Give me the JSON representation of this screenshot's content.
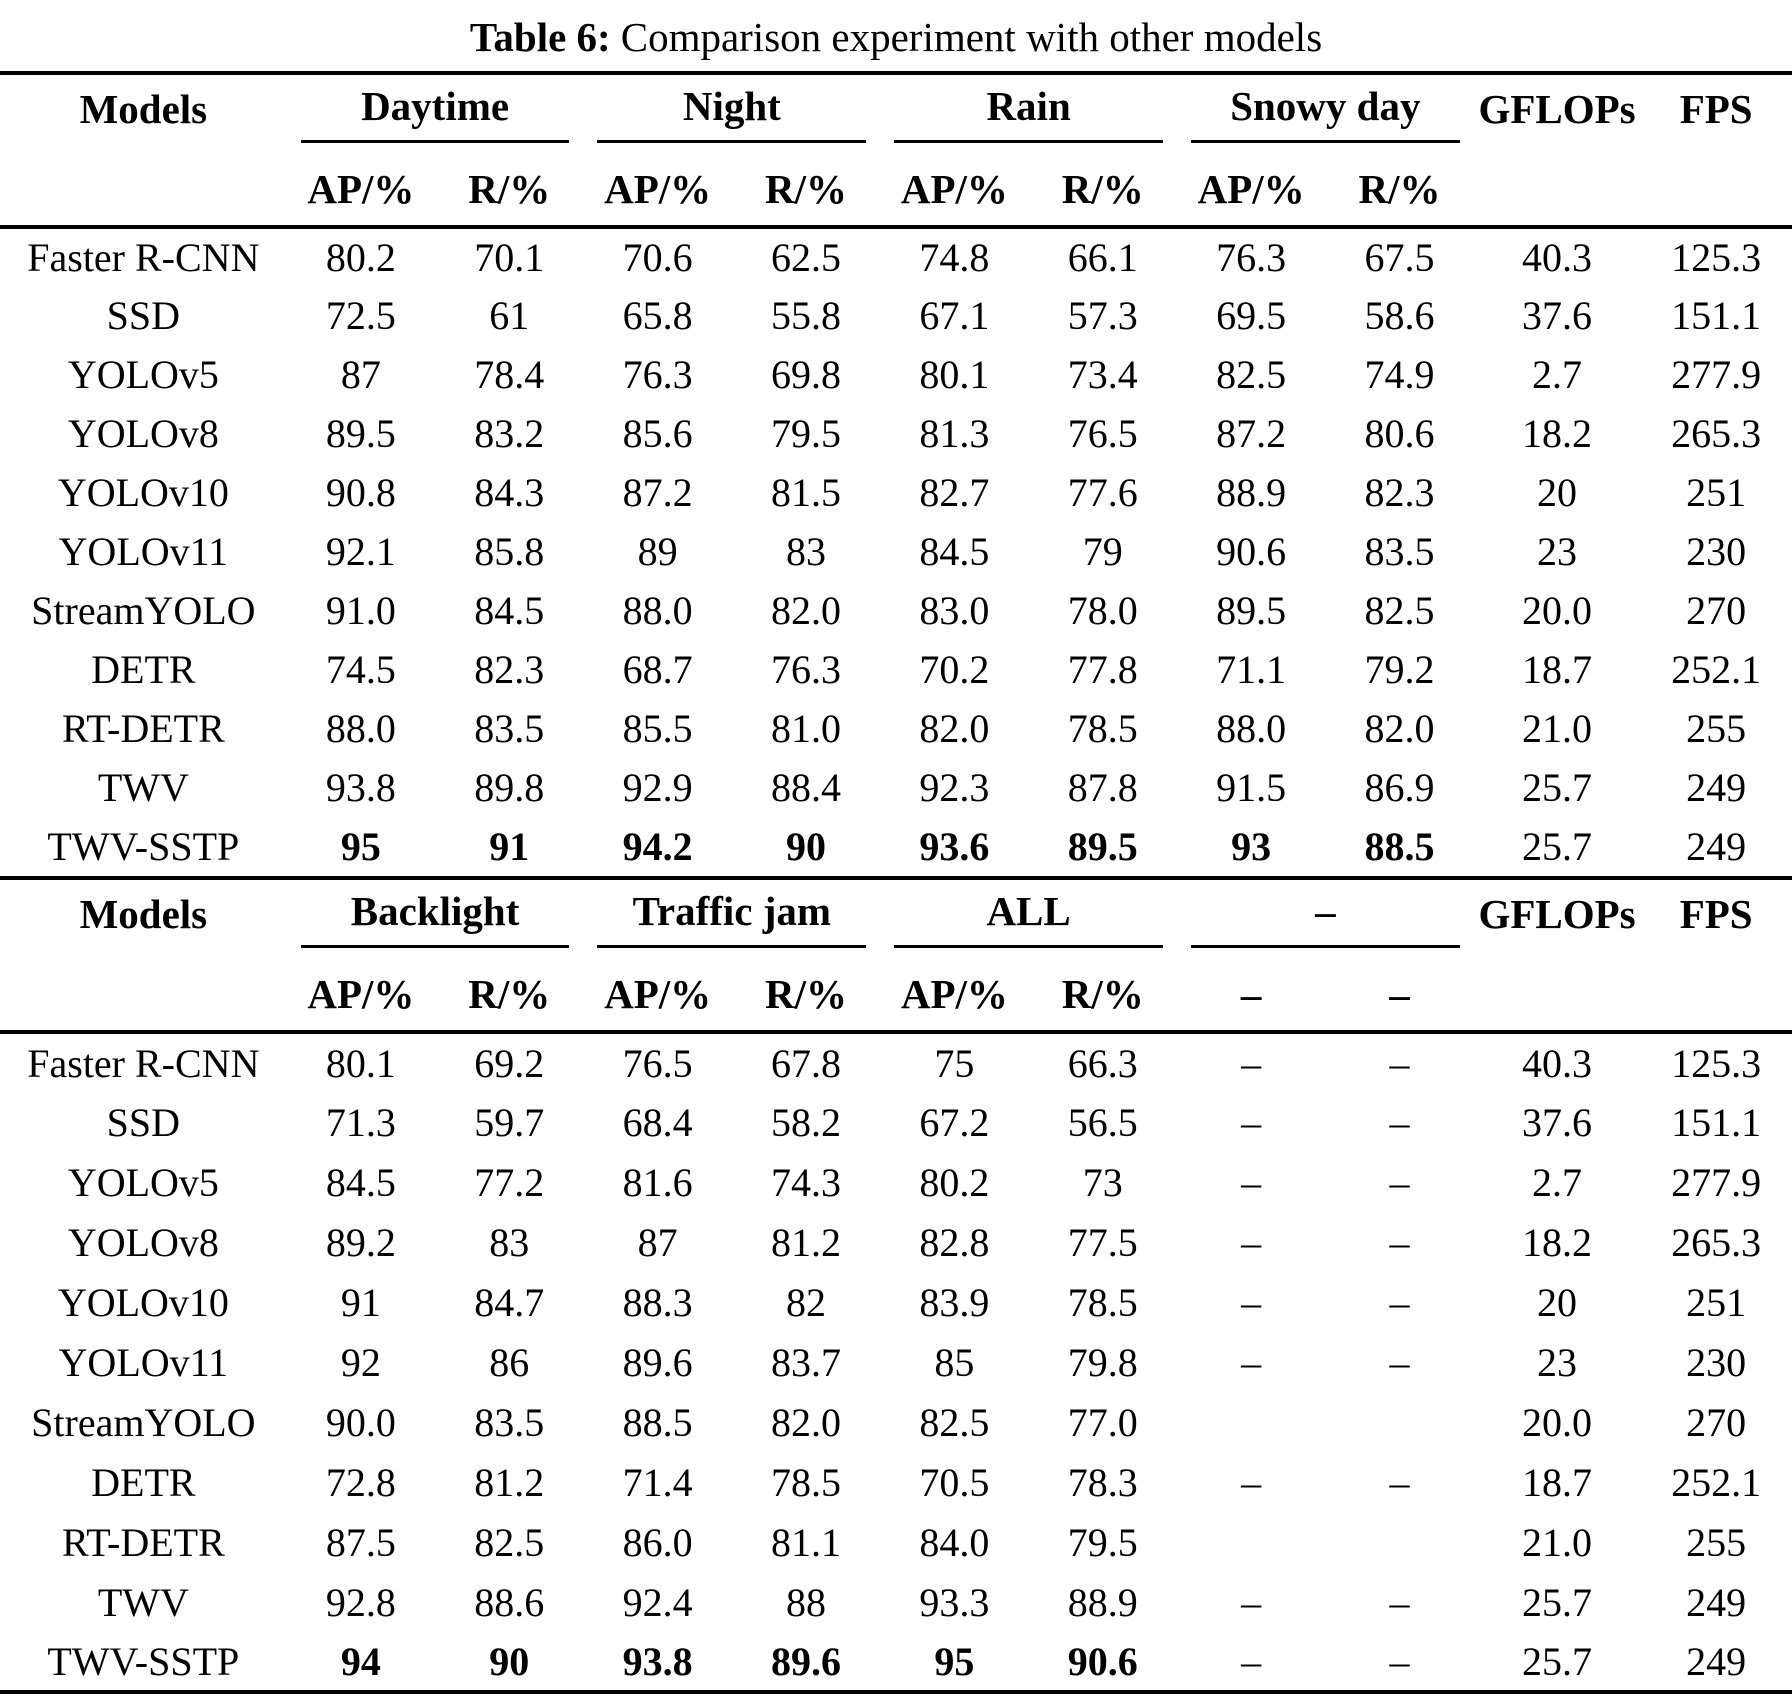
{
  "caption": {
    "label": "Table 6:",
    "text": "Comparison experiment with other models"
  },
  "section1": {
    "models_header": "Models",
    "groups": [
      "Daytime",
      "Night",
      "Rain",
      "Snowy day"
    ],
    "gflops_header": "GFLOPs",
    "fps_header": "FPS",
    "subheaders": [
      "AP/%",
      "R/%",
      "AP/%",
      "R/%",
      "AP/%",
      "R/%",
      "AP/%",
      "R/%"
    ],
    "rows": [
      {
        "model": "Faster R-CNN",
        "values": [
          "80.2",
          "70.1",
          "70.6",
          "62.5",
          "74.8",
          "66.1",
          "76.3",
          "67.5",
          "40.3",
          "125.3"
        ],
        "bold": false
      },
      {
        "model": "SSD",
        "values": [
          "72.5",
          "61",
          "65.8",
          "55.8",
          "67.1",
          "57.3",
          "69.5",
          "58.6",
          "37.6",
          "151.1"
        ],
        "bold": false
      },
      {
        "model": "YOLOv5",
        "values": [
          "87",
          "78.4",
          "76.3",
          "69.8",
          "80.1",
          "73.4",
          "82.5",
          "74.9",
          "2.7",
          "277.9"
        ],
        "bold": false
      },
      {
        "model": "YOLOv8",
        "values": [
          "89.5",
          "83.2",
          "85.6",
          "79.5",
          "81.3",
          "76.5",
          "87.2",
          "80.6",
          "18.2",
          "265.3"
        ],
        "bold": false
      },
      {
        "model": "YOLOv10",
        "values": [
          "90.8",
          "84.3",
          "87.2",
          "81.5",
          "82.7",
          "77.6",
          "88.9",
          "82.3",
          "20",
          "251"
        ],
        "bold": false
      },
      {
        "model": "YOLOv11",
        "values": [
          "92.1",
          "85.8",
          "89",
          "83",
          "84.5",
          "79",
          "90.6",
          "83.5",
          "23",
          "230"
        ],
        "bold": false
      },
      {
        "model": "StreamYOLO",
        "values": [
          "91.0",
          "84.5",
          "88.0",
          "82.0",
          "83.0",
          "78.0",
          "89.5",
          "82.5",
          "20.0",
          "270"
        ],
        "bold": false
      },
      {
        "model": "DETR",
        "values": [
          "74.5",
          "82.3",
          "68.7",
          "76.3",
          "70.2",
          "77.8",
          "71.1",
          "79.2",
          "18.7",
          "252.1"
        ],
        "bold": false
      },
      {
        "model": "RT-DETR",
        "values": [
          "88.0",
          "83.5",
          "85.5",
          "81.0",
          "82.0",
          "78.5",
          "88.0",
          "82.0",
          "21.0",
          "255"
        ],
        "bold": false
      },
      {
        "model": "TWV",
        "values": [
          "93.8",
          "89.8",
          "92.9",
          "88.4",
          "92.3",
          "87.8",
          "91.5",
          "86.9",
          "25.7",
          "249"
        ],
        "bold": false
      },
      {
        "model": "TWV-SSTP",
        "values": [
          "95",
          "91",
          "94.2",
          "90",
          "93.6",
          "89.5",
          "93",
          "88.5",
          "25.7",
          "249"
        ],
        "bold": true
      }
    ]
  },
  "section2": {
    "models_header": "Models",
    "groups": [
      "Backlight",
      "Traffic jam",
      "ALL",
      "–"
    ],
    "gflops_header": "GFLOPs",
    "fps_header": "FPS",
    "subheaders": [
      "AP/%",
      "R/%",
      "AP/%",
      "R/%",
      "AP/%",
      "R/%",
      "–",
      "–"
    ],
    "rows": [
      {
        "model": "Faster R-CNN",
        "values": [
          "80.1",
          "69.2",
          "76.5",
          "67.8",
          "75",
          "66.3",
          "–",
          "–",
          "40.3",
          "125.3"
        ],
        "bold": false
      },
      {
        "model": "SSD",
        "values": [
          "71.3",
          "59.7",
          "68.4",
          "58.2",
          "67.2",
          "56.5",
          "–",
          "–",
          "37.6",
          "151.1"
        ],
        "bold": false
      },
      {
        "model": "YOLOv5",
        "values": [
          "84.5",
          "77.2",
          "81.6",
          "74.3",
          "80.2",
          "73",
          "–",
          "–",
          "2.7",
          "277.9"
        ],
        "bold": false
      },
      {
        "model": "YOLOv8",
        "values": [
          "89.2",
          "83",
          "87",
          "81.2",
          "82.8",
          "77.5",
          "–",
          "–",
          "18.2",
          "265.3"
        ],
        "bold": false
      },
      {
        "model": "YOLOv10",
        "values": [
          "91",
          "84.7",
          "88.3",
          "82",
          "83.9",
          "78.5",
          "–",
          "–",
          "20",
          "251"
        ],
        "bold": false
      },
      {
        "model": "YOLOv11",
        "values": [
          "92",
          "86",
          "89.6",
          "83.7",
          "85",
          "79.8",
          "–",
          "–",
          "23",
          "230"
        ],
        "bold": false
      },
      {
        "model": "StreamYOLO",
        "values": [
          "90.0",
          "83.5",
          "88.5",
          "82.0",
          "82.5",
          "77.0",
          "",
          "",
          "20.0",
          "270"
        ],
        "bold": false
      },
      {
        "model": "DETR",
        "values": [
          "72.8",
          "81.2",
          "71.4",
          "78.5",
          "70.5",
          "78.3",
          "–",
          "–",
          "18.7",
          "252.1"
        ],
        "bold": false
      },
      {
        "model": "RT-DETR",
        "values": [
          "87.5",
          "82.5",
          "86.0",
          "81.1",
          "84.0",
          "79.5",
          "",
          "",
          "21.0",
          "255"
        ],
        "bold": false
      },
      {
        "model": "TWV",
        "values": [
          "92.8",
          "88.6",
          "92.4",
          "88",
          "93.3",
          "88.9",
          "–",
          "–",
          "25.7",
          "249"
        ],
        "bold": false
      },
      {
        "model": "TWV-SSTP",
        "values": [
          "94",
          "90",
          "93.8",
          "89.6",
          "95",
          "90.6",
          "–",
          "–",
          "25.7",
          "249"
        ],
        "bold": true
      }
    ]
  }
}
